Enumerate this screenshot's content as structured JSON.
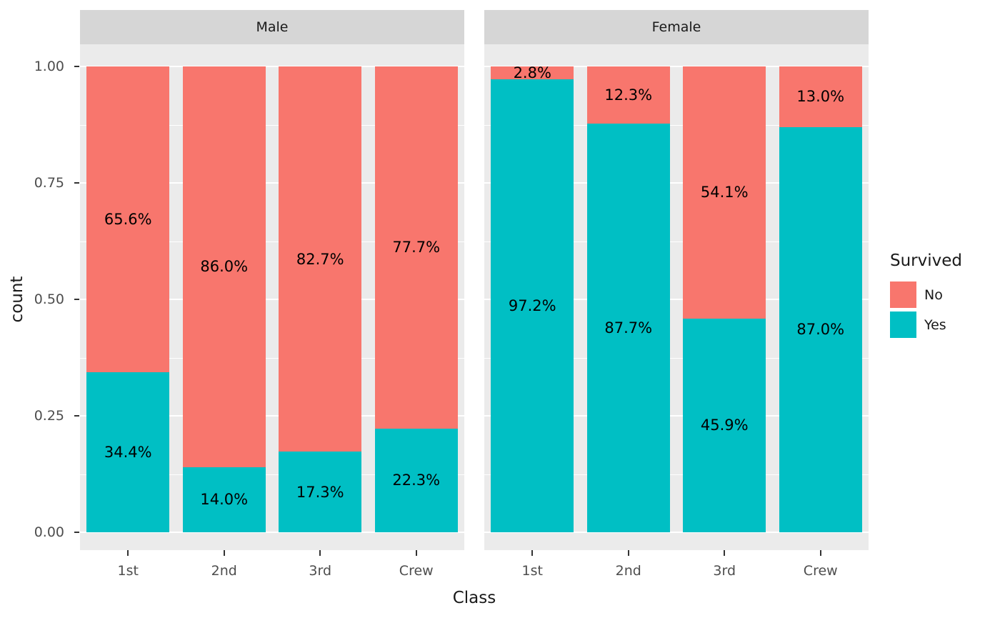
{
  "chart_data": {
    "type": "bar",
    "stacked": true,
    "normalized": true,
    "title": "",
    "xlabel": "Class",
    "ylabel": "count",
    "ylim": [
      0,
      1
    ],
    "grid": true,
    "legend_position": "right",
    "categories": [
      "1st",
      "2nd",
      "3rd",
      "Crew"
    ],
    "y_axis": {
      "ticks": [
        {
          "label": "1.00",
          "value": 1.0
        },
        {
          "label": "0.75",
          "value": 0.75
        },
        {
          "label": "0.50",
          "value": 0.5
        },
        {
          "label": "0.25",
          "value": 0.25
        },
        {
          "label": "0.00",
          "value": 0.0
        }
      ],
      "minor_gridlines": [
        0.125,
        0.375,
        0.625,
        0.875
      ]
    },
    "facets": [
      {
        "label": "Male",
        "series": [
          {
            "name": "No",
            "color": "#F8766D",
            "values": [
              0.656,
              0.86,
              0.827,
              0.777
            ],
            "labels": [
              "65.6%",
              "86.0%",
              "82.7%",
              "77.7%"
            ]
          },
          {
            "name": "Yes",
            "color": "#00BFC4",
            "values": [
              0.344,
              0.14,
              0.173,
              0.223
            ],
            "labels": [
              "34.4%",
              "14.0%",
              "17.3%",
              "22.3%"
            ]
          }
        ]
      },
      {
        "label": "Female",
        "series": [
          {
            "name": "No",
            "color": "#F8766D",
            "values": [
              0.028,
              0.123,
              0.541,
              0.13
            ],
            "labels": [
              "2.8%",
              "12.3%",
              "54.1%",
              "13.0%"
            ]
          },
          {
            "name": "Yes",
            "color": "#00BFC4",
            "values": [
              0.972,
              0.877,
              0.459,
              0.87
            ],
            "labels": [
              "97.2%",
              "87.7%",
              "45.9%",
              "87.0%"
            ]
          }
        ]
      }
    ],
    "legend": {
      "title": "Survived",
      "entries": [
        {
          "label": "No",
          "color": "#F8766D"
        },
        {
          "label": "Yes",
          "color": "#00BFC4"
        }
      ]
    },
    "colors": {
      "panel_bg": "#EBEBEB",
      "strip_bg": "#D6D6D6",
      "grid": "#FFFFFF",
      "no": "#F8766D",
      "yes": "#00BFC4"
    }
  }
}
